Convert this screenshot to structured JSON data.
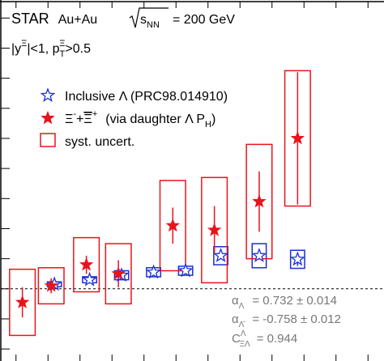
{
  "chart_data": {
    "type": "scatter",
    "title": "",
    "xlabel": "",
    "ylabel": "",
    "xlim": [
      0.5,
      12.5
    ],
    "ylim": [
      -2.4,
      9.6
    ],
    "grid": false,
    "zero_line": 0,
    "header": {
      "experiment": "STAR",
      "system": "Au+Au",
      "energy_lhs": "s",
      "energy_sub": "NN",
      "energy_value": "= 200 GeV",
      "cut_rapidity": "|y",
      "cut_rapidity_sup": "Ξ",
      "cut_rapidity_tail": "|<1, p",
      "cut_pt_sub": "T",
      "cut_pt_sup": "Ξ",
      "cut_pt_tail": ">0.5"
    },
    "legend": {
      "placement": "upper-left",
      "entries": [
        {
          "key": "lambda",
          "marker": "open-star",
          "color": "#1a2fd6",
          "text": "Inclusive Λ (PRC98.014910)"
        },
        {
          "key": "xi",
          "marker": "filled-star",
          "color": "#e8141c",
          "text_main": "Ξ",
          "text_sup1": "-",
          "text_mid": "+",
          "text_bar": "Ξ",
          "text_sup2": "+",
          "text_tail": "(via daughter Λ P",
          "text_sub": "H",
          "text_close": ")"
        },
        {
          "key": "syst",
          "marker": "open-box",
          "color": "#e8141c",
          "text": "syst. uncert."
        }
      ]
    },
    "annotations": [
      {
        "label": "α",
        "sub": "Λ",
        "value": "=  0.732 ± 0.014"
      },
      {
        "label": "α",
        "sub": "Λ̄",
        "value": "= -0.758 ± 0.012"
      },
      {
        "label": "C",
        "sub": "ΞΛ",
        "sup": "Λ",
        "value": "= 0.944"
      }
    ],
    "series": [
      {
        "name": "Inclusive Λ (PRC98.014910)",
        "marker": "open-star",
        "color": "#1a2fd6",
        "x": [
          2.2,
          3.3,
          4.3,
          5.3,
          6.3,
          7.4,
          8.6,
          9.8
        ],
        "y": [
          0.15,
          0.3,
          0.45,
          0.55,
          0.6,
          1.1,
          1.1,
          0.98
        ],
        "err": [
          0.08,
          0.08,
          0.08,
          0.1,
          0.1,
          0.12,
          0.12,
          0.22
        ],
        "syst": [
          0.08,
          0.1,
          0.15,
          0.15,
          0.15,
          0.3,
          0.4,
          0.3
        ],
        "syst_half_width": 0.22
      },
      {
        "name": "Ξ⁻+Ξ̄⁺ (via daughter Λ P_H)",
        "marker": "filled-star",
        "color": "#e8141c",
        "x": [
          1.2,
          2.1,
          3.2,
          4.2,
          5.9,
          7.2,
          8.6,
          9.8
        ],
        "y": [
          -0.45,
          0.1,
          0.8,
          0.5,
          2.1,
          1.95,
          2.9,
          5.0
        ],
        "err": [
          0.5,
          0.25,
          0.3,
          0.45,
          0.6,
          0.8,
          1.0,
          2.2
        ],
        "syst": [
          1.1,
          0.6,
          0.9,
          1.0,
          1.5,
          1.75,
          1.9,
          2.25
        ],
        "syst_half_width": 0.4
      }
    ]
  }
}
